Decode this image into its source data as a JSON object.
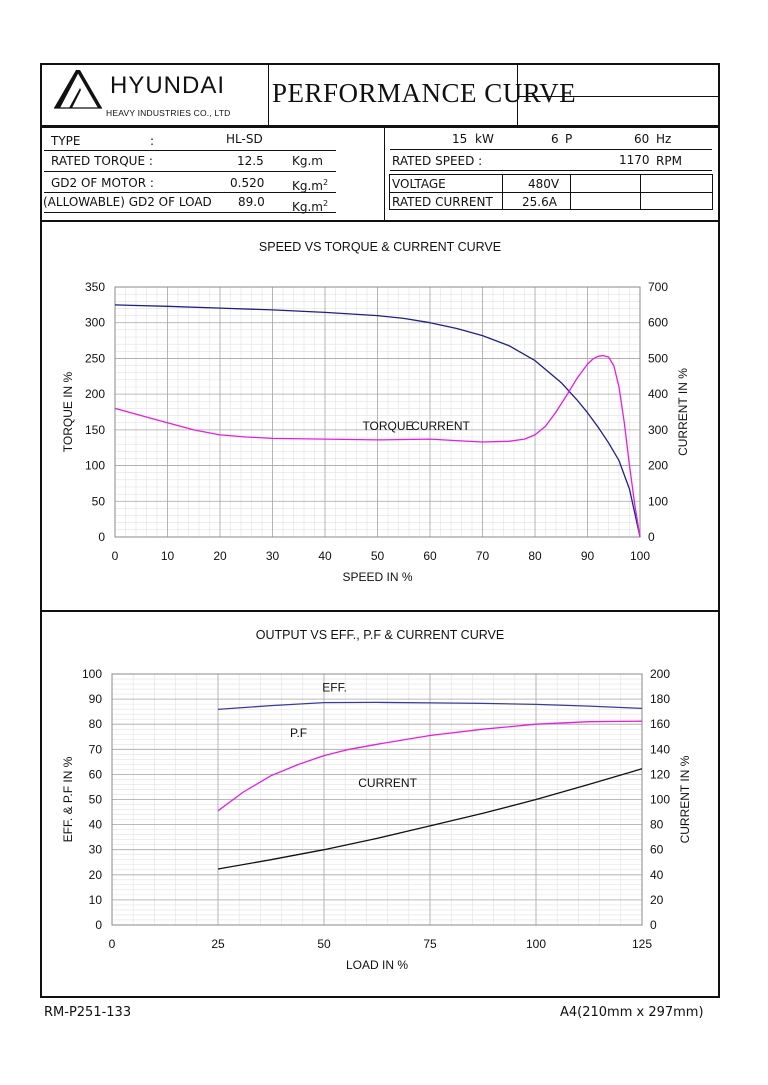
{
  "header": {
    "brand": "HYUNDAI",
    "company": "HEAVY INDUSTRIES CO., LTD",
    "title": "PERFORMANCE  CURVE"
  },
  "specs_left": [
    {
      "label": "TYPE",
      "sep": ":",
      "value": "HL-SD",
      "unit": ""
    },
    {
      "label": "RATED TORQUE :",
      "sep": "",
      "value": "12.5",
      "unit": "Kg.m"
    },
    {
      "label": "GD2 OF MOTOR :",
      "sep": "",
      "value": "0.520",
      "unit": "Kg.m",
      "unit_sup": "2"
    },
    {
      "label": "(ALLOWABLE) GD2 OF LOAD",
      "sep": "",
      "value": "89.0",
      "unit": "Kg.m",
      "unit_sup": "2"
    }
  ],
  "specs_right": {
    "power_value": "15",
    "power_unit": "kW",
    "poles_value": "6",
    "poles_unit": "P",
    "freq_value": "60",
    "freq_unit": "Hz",
    "rated_speed_label": "RATED    SPEED :",
    "rated_speed_value": "1170",
    "rated_speed_unit": "RPM",
    "voltage_label": "VOLTAGE",
    "voltage_value": "480V",
    "current_label": "RATED CURRENT",
    "current_value": "25.6A"
  },
  "chart_data": [
    {
      "type": "line",
      "title": "SPEED VS TORQUE & CURRENT CURVE",
      "xlabel": "SPEED IN %",
      "ylabel": "TORQUE IN %",
      "y2label": "CURRENT IN %",
      "xlim": [
        0,
        100
      ],
      "ylim": [
        0,
        350
      ],
      "y2lim": [
        0,
        700
      ],
      "xticks": [
        "0",
        "10",
        "20",
        "30",
        "40",
        "50",
        "60",
        "70",
        "80",
        "90",
        "100"
      ],
      "yticks": [
        "0",
        "50",
        "100",
        "150",
        "200",
        "250",
        "300",
        "350"
      ],
      "y2ticks": [
        "0",
        "100",
        "200",
        "300",
        "400",
        "500",
        "600",
        "700"
      ],
      "grid": true,
      "series": [
        {
          "name": "CURRENT",
          "axis": "y2",
          "color": "#1f1f8a",
          "x": [
            0,
            10,
            20,
            30,
            40,
            50,
            55,
            60,
            65,
            70,
            75,
            80,
            85,
            88,
            90,
            92,
            94,
            96,
            98,
            100
          ],
          "y": [
            650,
            646,
            641,
            636,
            629,
            620,
            612,
            600,
            584,
            564,
            536,
            494,
            432,
            384,
            348,
            308,
            264,
            214,
            134,
            0
          ]
        },
        {
          "name": "TORQUE",
          "axis": "y",
          "color": "#e81ce0",
          "x": [
            0,
            5,
            10,
            15,
            20,
            25,
            30,
            40,
            50,
            60,
            65,
            70,
            75,
            78,
            80,
            82,
            84,
            86,
            88,
            90,
            91,
            92,
            93,
            94,
            95,
            96,
            97,
            98,
            99,
            100
          ],
          "y": [
            180,
            170,
            160,
            150,
            143,
            140,
            138,
            137,
            136,
            137,
            135,
            133,
            134,
            137,
            143,
            155,
            175,
            198,
            222,
            242,
            249,
            253,
            254,
            252,
            240,
            210,
            160,
            100,
            45,
            0
          ]
        }
      ]
    },
    {
      "type": "line",
      "title": "OUTPUT VS EFF., P.F & CURRENT CURVE",
      "xlabel": "LOAD IN %",
      "ylabel": "EFF. & P.F IN %",
      "y2label": "CURRENT IN %",
      "xlim": [
        0,
        125
      ],
      "ylim": [
        0,
        100
      ],
      "y2lim": [
        0,
        200
      ],
      "xticks": [
        "0",
        "25",
        "50",
        "75",
        "100",
        "125"
      ],
      "yticks": [
        "0",
        "10",
        "20",
        "30",
        "40",
        "50",
        "60",
        "70",
        "80",
        "90",
        "100"
      ],
      "y2ticks": [
        "0",
        "20",
        "40",
        "60",
        "80",
        "100",
        "120",
        "140",
        "160",
        "180",
        "200"
      ],
      "grid": true,
      "series": [
        {
          "name": "EFF.",
          "axis": "y",
          "color": "#3a3aa0",
          "x": [
            25,
            37.5,
            50,
            62.5,
            75,
            87.5,
            100,
            112.5,
            125
          ],
          "y": [
            85.9,
            87.4,
            88.6,
            88.7,
            88.5,
            88.3,
            87.9,
            87.2,
            86.3
          ]
        },
        {
          "name": "P.F",
          "axis": "y",
          "color": "#e81ce0",
          "x": [
            25,
            31,
            37.5,
            44,
            50,
            56,
            62.5,
            75,
            87.5,
            100,
            112.5,
            125
          ],
          "y": [
            45.5,
            53,
            59.5,
            64,
            67.5,
            70,
            72,
            75.5,
            78,
            80,
            81,
            81.2
          ]
        },
        {
          "name": "CURRENT",
          "axis": "y2",
          "color": "#111111",
          "x": [
            25,
            37.5,
            50,
            62.5,
            75,
            87.5,
            100,
            112.5,
            125
          ],
          "y": [
            44.6,
            52,
            60,
            69,
            79,
            89,
            100,
            112,
            124.5
          ]
        }
      ]
    }
  ],
  "footer": {
    "left": "RM-P251-133",
    "right": "A4(210mm x 297mm)"
  }
}
